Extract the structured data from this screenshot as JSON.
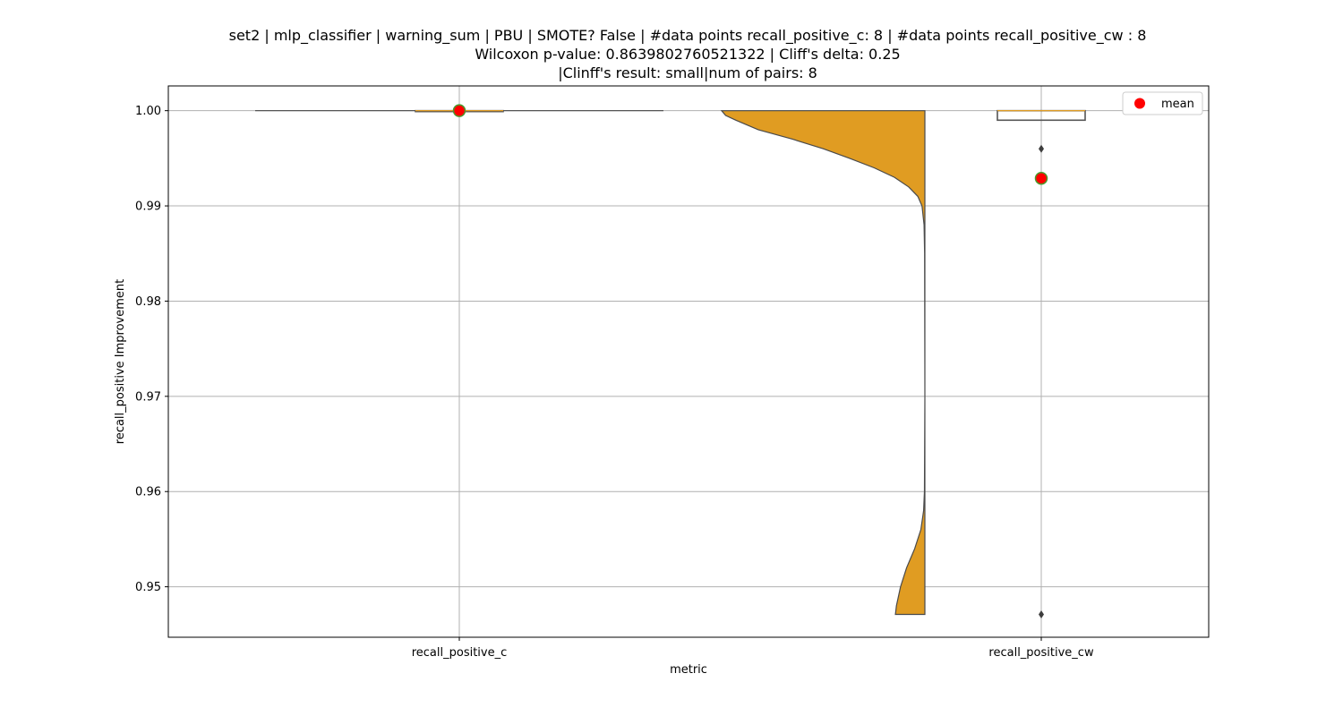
{
  "chart_data": {
    "type": "violin-box",
    "title_lines": [
      "set2 | mlp_classifier | warning_sum | PBU | SMOTE? False | #data points recall_positive_c: 8 | #data points recall_positive_cw : 8",
      "Wilcoxon p-value: 0.8639802760521322 | Cliff's delta: 0.25",
      "|Clinff's result: small|num of pairs: 8"
    ],
    "xlabel": "metric",
    "ylabel": "recall_positive Improvement",
    "categories": [
      "recall_positive_c",
      "recall_positive_cw"
    ],
    "ylim": [
      0.9447,
      1.0026
    ],
    "yticks": [
      0.95,
      0.96,
      0.97,
      0.98,
      0.99,
      1.0
    ],
    "ytick_labels": [
      "0.95",
      "0.96",
      "0.97",
      "0.98",
      "0.99",
      "1.00"
    ],
    "grid": true,
    "legend": {
      "placement": "top-right",
      "entries": [
        {
          "label": "mean",
          "color": "#ff0000"
        }
      ]
    },
    "colors": {
      "violin_fill": "#e09c22",
      "mean_marker": "#ff0000",
      "mean_edge": "#4a9a2e",
      "box_edge": "#555555",
      "grid": "#b0b0b0"
    },
    "series": [
      {
        "name": "recall_positive_c",
        "values": [
          1.0,
          1.0,
          1.0,
          1.0,
          1.0,
          1.0,
          1.0,
          1.0
        ],
        "mean": 1.0,
        "box": {
          "q1": 1.0,
          "median": 1.0,
          "q3": 1.0,
          "whisker_low": 1.0,
          "whisker_high": 1.0
        },
        "outliers": []
      },
      {
        "name": "recall_positive_cw",
        "values": [
          1.0,
          1.0,
          1.0,
          1.0,
          1.0,
          0.999,
          0.996,
          0.9471
        ],
        "mean": 0.9929,
        "box": {
          "q1": 0.999,
          "median": 1.0,
          "q3": 1.0,
          "whisker_low": 0.999,
          "whisker_high": 1.0
        },
        "outliers": [
          0.996,
          0.9471
        ]
      }
    ],
    "violin_halfwidth_profile": [
      [
        1.0,
        1.0
      ],
      [
        0.9995,
        0.98
      ],
      [
        0.999,
        0.93
      ],
      [
        0.998,
        0.82
      ],
      [
        0.997,
        0.65
      ],
      [
        0.996,
        0.5
      ],
      [
        0.995,
        0.37
      ],
      [
        0.994,
        0.25
      ],
      [
        0.993,
        0.15
      ],
      [
        0.992,
        0.08
      ],
      [
        0.991,
        0.035
      ],
      [
        0.99,
        0.014
      ],
      [
        0.988,
        0.004
      ],
      [
        0.985,
        0.0015
      ],
      [
        0.97,
        0.0002
      ],
      [
        0.96,
        0.002
      ],
      [
        0.958,
        0.006
      ],
      [
        0.956,
        0.02
      ],
      [
        0.954,
        0.05
      ],
      [
        0.952,
        0.09
      ],
      [
        0.95,
        0.12
      ],
      [
        0.948,
        0.14
      ],
      [
        0.9471,
        0.145
      ]
    ]
  }
}
